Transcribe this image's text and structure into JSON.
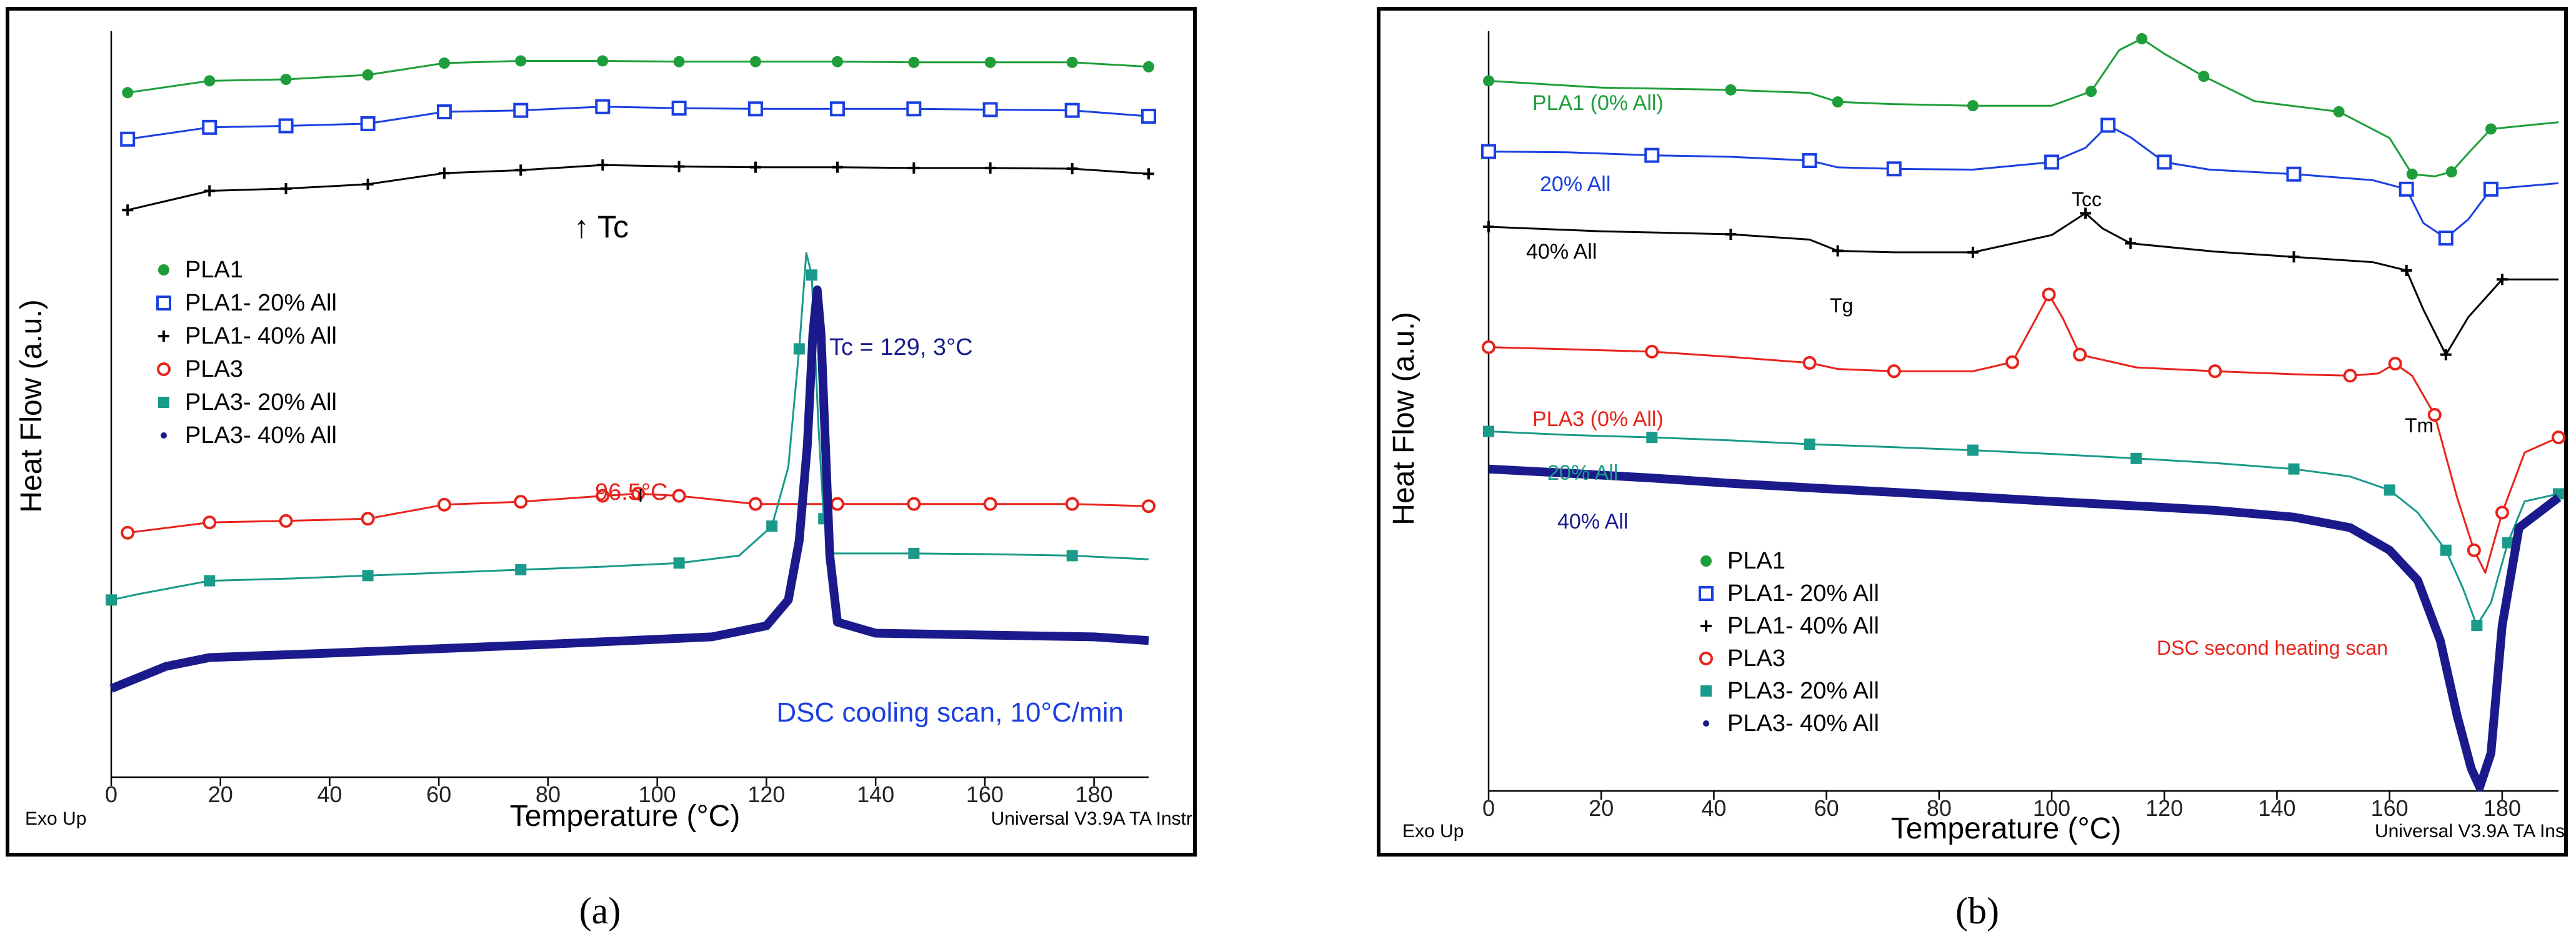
{
  "chart_data": [
    {
      "type": "line",
      "panel_label": "(a)",
      "xlabel": "Temperature (°C)",
      "ylabel": "Heat Flow (a.u.)",
      "xlim": [
        0,
        190
      ],
      "xticks": [
        0,
        20,
        40,
        60,
        80,
        100,
        120,
        140,
        160,
        180
      ],
      "corner_left": "Exo Up",
      "corner_right": "Universal V3.9A TA Instr",
      "annotations": [
        "↑ Tc",
        "Tc = 129, 3°C",
        "96.5°C",
        "DSC cooling scan, 10°C/min"
      ],
      "legend": [
        "PLA1",
        "PLA1- 20% All",
        "PLA1- 40% All",
        "PLA3",
        "PLA3- 20% All",
        "PLA3- 40% All"
      ],
      "series": [
        {
          "name": "PLA1",
          "color": "#1e9e3a",
          "marker": "circle-filled",
          "points": [
            [
              3,
              0.927
            ],
            [
              18,
              0.943
            ],
            [
              32,
              0.945
            ],
            [
              47,
              0.951
            ],
            [
              61,
              0.967
            ],
            [
              75,
              0.97
            ],
            [
              90,
              0.97
            ],
            [
              104,
              0.969
            ],
            [
              118,
              0.969
            ],
            [
              133,
              0.969
            ],
            [
              147,
              0.968
            ],
            [
              161,
              0.968
            ],
            [
              176,
              0.968
            ],
            [
              190,
              0.962
            ]
          ]
        },
        {
          "name": "PLA1- 20% All",
          "color": "#1a3fe0",
          "marker": "square-open",
          "points": [
            [
              3,
              0.864
            ],
            [
              18,
              0.88
            ],
            [
              32,
              0.882
            ],
            [
              47,
              0.885
            ],
            [
              61,
              0.901
            ],
            [
              75,
              0.903
            ],
            [
              90,
              0.908
            ],
            [
              104,
              0.906
            ],
            [
              118,
              0.905
            ],
            [
              133,
              0.905
            ],
            [
              147,
              0.905
            ],
            [
              161,
              0.904
            ],
            [
              176,
              0.903
            ],
            [
              190,
              0.895
            ]
          ]
        },
        {
          "name": "PLA1- 40% All",
          "color": "#000000",
          "marker": "plus",
          "points": [
            [
              3,
              0.768
            ],
            [
              18,
              0.794
            ],
            [
              32,
              0.797
            ],
            [
              47,
              0.803
            ],
            [
              61,
              0.818
            ],
            [
              75,
              0.822
            ],
            [
              90,
              0.829
            ],
            [
              104,
              0.827
            ],
            [
              118,
              0.826
            ],
            [
              133,
              0.826
            ],
            [
              147,
              0.825
            ],
            [
              161,
              0.825
            ],
            [
              176,
              0.824
            ],
            [
              190,
              0.817
            ]
          ]
        },
        {
          "name": "PLA3",
          "color": "#e8231b",
          "marker": "circle-open",
          "points": [
            [
              3,
              0.331
            ],
            [
              18,
              0.345
            ],
            [
              32,
              0.347
            ],
            [
              47,
              0.35
            ],
            [
              61,
              0.369
            ],
            [
              75,
              0.373
            ],
            [
              90,
              0.381
            ],
            [
              96.5,
              0.384
            ],
            [
              104,
              0.381
            ],
            [
              118,
              0.37
            ],
            [
              133,
              0.37
            ],
            [
              147,
              0.37
            ],
            [
              161,
              0.37
            ],
            [
              176,
              0.37
            ],
            [
              190,
              0.367
            ]
          ]
        },
        {
          "name": "PLA3- 20% All",
          "color": "#1a9a8a",
          "marker": "square-filled",
          "points": [
            [
              0,
              0.24
            ],
            [
              5,
              0.248
            ],
            [
              18,
              0.266
            ],
            [
              33,
              0.269
            ],
            [
              47,
              0.273
            ],
            [
              61,
              0.277
            ],
            [
              75,
              0.281
            ],
            [
              90,
              0.285
            ],
            [
              104,
              0.29
            ],
            [
              115,
              0.3
            ],
            [
              121,
              0.34
            ],
            [
              124,
              0.42
            ],
            [
              126,
              0.58
            ],
            [
              127.3,
              0.71
            ],
            [
              128.3,
              0.68
            ],
            [
              129.5,
              0.48
            ],
            [
              130.5,
              0.35
            ],
            [
              132,
              0.303
            ],
            [
              147,
              0.303
            ],
            [
              161,
              0.302
            ],
            [
              176,
              0.3
            ],
            [
              190,
              0.295
            ]
          ]
        },
        {
          "name": "PLA3- 40% All",
          "color": "#1a1a8c",
          "marker": "dot",
          "points": [
            [
              0,
              0.12
            ],
            [
              10,
              0.15
            ],
            [
              18,
              0.162
            ],
            [
              40,
              0.168
            ],
            [
              80,
              0.18
            ],
            [
              110,
              0.19
            ],
            [
              120,
              0.205
            ],
            [
              124,
              0.24
            ],
            [
              126,
              0.32
            ],
            [
              127.5,
              0.45
            ],
            [
              128.5,
              0.6
            ],
            [
              129.3,
              0.66
            ],
            [
              130,
              0.6
            ],
            [
              130.8,
              0.45
            ],
            [
              131.6,
              0.3
            ],
            [
              133,
              0.21
            ],
            [
              140,
              0.195
            ],
            [
              180,
              0.19
            ],
            [
              190,
              0.185
            ]
          ]
        }
      ]
    },
    {
      "type": "line",
      "panel_label": "(b)",
      "xlabel": "Temperature (°C)",
      "ylabel": "Heat Flow (a.u.)",
      "xlim": [
        0,
        190
      ],
      "xticks": [
        0,
        20,
        40,
        60,
        80,
        100,
        120,
        140,
        160,
        180
      ],
      "corner_left": "Exo Up",
      "corner_right": "Universal V3.9A TA Ins",
      "annotations": [
        "Tcc",
        "Tg",
        "Tm",
        "DSC second heating scan"
      ],
      "curve_labels": [
        "PLA1 (0% All)",
        "20% All",
        "40% All",
        "PLA3 (0% All)",
        "20% All",
        "40% All"
      ],
      "legend": [
        "PLA1",
        "PLA1- 20% All",
        "PLA1- 40% All",
        "PLA3",
        "PLA3- 20% All",
        "PLA3- 40% All"
      ],
      "series": [
        {
          "name": "PLA1",
          "color": "#1e9e3a",
          "marker": "circle-filled",
          "points": [
            [
              0,
              0.944
            ],
            [
              20,
              0.935
            ],
            [
              43,
              0.932
            ],
            [
              57,
              0.928
            ],
            [
              62,
              0.916
            ],
            [
              72,
              0.913
            ],
            [
              86,
              0.911
            ],
            [
              100,
              0.911
            ],
            [
              107,
              0.93
            ],
            [
              112,
              0.985
            ],
            [
              116,
              1.0
            ],
            [
              120,
              0.98
            ],
            [
              127,
              0.95
            ],
            [
              136,
              0.917
            ],
            [
              151,
              0.903
            ],
            [
              160,
              0.868
            ],
            [
              164,
              0.82
            ],
            [
              168,
              0.817
            ],
            [
              171,
              0.823
            ],
            [
              174,
              0.848
            ],
            [
              178,
              0.88
            ],
            [
              190,
              0.889
            ]
          ]
        },
        {
          "name": "PLA1- 20% All",
          "color": "#1a3fe0",
          "marker": "square-open",
          "points": [
            [
              0,
              0.85
            ],
            [
              14,
              0.849
            ],
            [
              29,
              0.845
            ],
            [
              43,
              0.843
            ],
            [
              57,
              0.838
            ],
            [
              62,
              0.829
            ],
            [
              72,
              0.827
            ],
            [
              86,
              0.826
            ],
            [
              100,
              0.836
            ],
            [
              106,
              0.855
            ],
            [
              110,
              0.885
            ],
            [
              114,
              0.869
            ],
            [
              120,
              0.836
            ],
            [
              128,
              0.826
            ],
            [
              143,
              0.82
            ],
            [
              157,
              0.812
            ],
            [
              163,
              0.8
            ],
            [
              166,
              0.755
            ],
            [
              170,
              0.735
            ],
            [
              174,
              0.76
            ],
            [
              178,
              0.8
            ],
            [
              190,
              0.808
            ]
          ]
        },
        {
          "name": "PLA1- 40% All",
          "color": "#000000",
          "marker": "plus",
          "points": [
            [
              0,
              0.75
            ],
            [
              20,
              0.744
            ],
            [
              43,
              0.74
            ],
            [
              57,
              0.733
            ],
            [
              62,
              0.718
            ],
            [
              72,
              0.716
            ],
            [
              86,
              0.716
            ],
            [
              100,
              0.739
            ],
            [
              106,
              0.768
            ],
            [
              109,
              0.748
            ],
            [
              114,
              0.728
            ],
            [
              129,
              0.717
            ],
            [
              143,
              0.71
            ],
            [
              157,
              0.703
            ],
            [
              163,
              0.692
            ],
            [
              166,
              0.64
            ],
            [
              170,
              0.58
            ],
            [
              174,
              0.63
            ],
            [
              180,
              0.68
            ],
            [
              190,
              0.68
            ]
          ]
        },
        {
          "name": "PLA3",
          "color": "#e8231b",
          "marker": "circle-open",
          "points": [
            [
              0,
              0.59
            ],
            [
              15,
              0.587
            ],
            [
              29,
              0.584
            ],
            [
              43,
              0.577
            ],
            [
              57,
              0.569
            ],
            [
              62,
              0.561
            ],
            [
              72,
              0.558
            ],
            [
              86,
              0.558
            ],
            [
              93,
              0.57
            ],
            [
              97,
              0.625
            ],
            [
              99.5,
              0.66
            ],
            [
              102,
              0.628
            ],
            [
              105,
              0.58
            ],
            [
              115,
              0.563
            ],
            [
              129,
              0.558
            ],
            [
              143,
              0.554
            ],
            [
              153,
              0.552
            ],
            [
              158,
              0.555
            ],
            [
              161,
              0.568
            ],
            [
              164,
              0.552
            ],
            [
              168,
              0.5
            ],
            [
              172,
              0.39
            ],
            [
              175,
              0.32
            ],
            [
              177,
              0.29
            ],
            [
              180,
              0.37
            ],
            [
              184,
              0.45
            ],
            [
              190,
              0.47
            ]
          ]
        },
        {
          "name": "PLA3- 20% All",
          "color": "#1a9a8a",
          "marker": "square-filled",
          "points": [
            [
              0,
              0.478
            ],
            [
              15,
              0.473
            ],
            [
              29,
              0.47
            ],
            [
              43,
              0.466
            ],
            [
              57,
              0.461
            ],
            [
              72,
              0.457
            ],
            [
              86,
              0.453
            ],
            [
              100,
              0.448
            ],
            [
              115,
              0.442
            ],
            [
              129,
              0.436
            ],
            [
              143,
              0.428
            ],
            [
              153,
              0.418
            ],
            [
              160,
              0.4
            ],
            [
              165,
              0.37
            ],
            [
              170,
              0.32
            ],
            [
              173,
              0.27
            ],
            [
              175.5,
              0.22
            ],
            [
              178,
              0.25
            ],
            [
              181,
              0.33
            ],
            [
              184,
              0.385
            ],
            [
              190,
              0.395
            ]
          ]
        },
        {
          "name": "PLA3- 40% All",
          "color": "#1a1a8c",
          "marker": "dot",
          "points": [
            [
              0,
              0.428
            ],
            [
              15,
              0.422
            ],
            [
              29,
              0.416
            ],
            [
              43,
              0.409
            ],
            [
              57,
              0.403
            ],
            [
              72,
              0.397
            ],
            [
              86,
              0.391
            ],
            [
              100,
              0.385
            ],
            [
              115,
              0.379
            ],
            [
              129,
              0.373
            ],
            [
              143,
              0.364
            ],
            [
              153,
              0.35
            ],
            [
              160,
              0.32
            ],
            [
              165,
              0.28
            ],
            [
              169,
              0.2
            ],
            [
              172,
              0.1
            ],
            [
              174.5,
              0.03
            ],
            [
              176,
              0.005
            ],
            [
              178,
              0.05
            ],
            [
              180,
              0.22
            ],
            [
              183,
              0.35
            ],
            [
              190,
              0.39
            ]
          ]
        }
      ]
    }
  ]
}
